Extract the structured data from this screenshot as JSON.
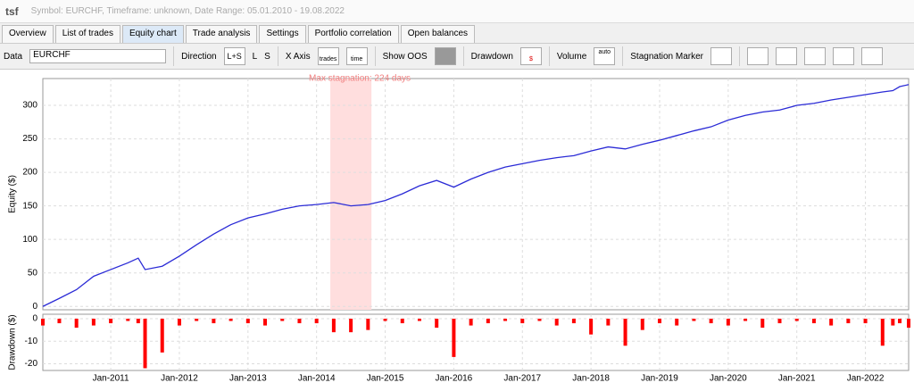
{
  "header": {
    "app": "tsf",
    "info": "Symbol: EURCHF, Timeframe: unknown, Date Range: 05.01.2010 - 19.08.2022"
  },
  "tabs": [
    "Overview",
    "List of trades",
    "Equity chart",
    "Trade analysis",
    "Settings",
    "Portfolio correlation",
    "Open balances"
  ],
  "toolbar": {
    "data_label": "Data",
    "data_value": "EURCHF",
    "direction": "Direction",
    "dir_options": [
      "L+S",
      "L",
      "S"
    ],
    "x_axis": "X Axis",
    "x_icons": [
      "trades",
      "time"
    ],
    "show_oos": "Show OOS",
    "drawdown": "Drawdown",
    "volume": "Volume",
    "volume_icon": "auto",
    "stagnation": "Stagnation Marker"
  },
  "chart_data": [
    {
      "type": "line",
      "ylabel": "Equity ($)",
      "color": "#2b2bd6",
      "annotation": "Max stagnation: 224 days",
      "stagnation": {
        "start": 2014.2,
        "end": 2014.8
      },
      "x": [
        2010.01,
        2010.25,
        2010.5,
        2010.75,
        2011.0,
        2011.25,
        2011.4,
        2011.5,
        2011.75,
        2012.0,
        2012.25,
        2012.5,
        2012.75,
        2013.0,
        2013.25,
        2013.5,
        2013.75,
        2014.0,
        2014.25,
        2014.5,
        2014.75,
        2015.0,
        2015.25,
        2015.5,
        2015.75,
        2016.0,
        2016.25,
        2016.5,
        2016.75,
        2017.0,
        2017.25,
        2017.5,
        2017.75,
        2018.0,
        2018.25,
        2018.5,
        2018.75,
        2019.0,
        2019.25,
        2019.5,
        2019.75,
        2020.0,
        2020.25,
        2020.5,
        2020.75,
        2021.0,
        2021.25,
        2021.5,
        2021.75,
        2022.0,
        2022.25,
        2022.4,
        2022.5,
        2022.63
      ],
      "values": [
        0,
        12,
        25,
        45,
        55,
        65,
        72,
        55,
        60,
        75,
        92,
        108,
        122,
        132,
        138,
        145,
        150,
        152,
        155,
        150,
        152,
        158,
        168,
        180,
        188,
        178,
        190,
        200,
        208,
        213,
        218,
        222,
        225,
        232,
        238,
        235,
        242,
        248,
        255,
        262,
        268,
        278,
        285,
        290,
        293,
        300,
        303,
        308,
        312,
        316,
        320,
        322,
        328,
        331
      ],
      "xlim": [
        2010.01,
        2022.63
      ],
      "ylim": [
        -5,
        340
      ],
      "yticks": [
        0,
        50,
        100,
        150,
        200,
        250,
        300
      ],
      "grid": true
    },
    {
      "type": "bar",
      "ylabel": "Drawdown ($)",
      "color": "#ff0000",
      "x": [
        2010.01,
        2010.25,
        2010.5,
        2010.75,
        2011.0,
        2011.25,
        2011.4,
        2011.5,
        2011.75,
        2012.0,
        2012.25,
        2012.5,
        2012.75,
        2013.0,
        2013.25,
        2013.5,
        2013.75,
        2014.0,
        2014.25,
        2014.5,
        2014.75,
        2015.0,
        2015.25,
        2015.5,
        2015.75,
        2016.0,
        2016.25,
        2016.5,
        2016.75,
        2017.0,
        2017.25,
        2017.5,
        2017.75,
        2018.0,
        2018.25,
        2018.5,
        2018.75,
        2019.0,
        2019.25,
        2019.5,
        2019.75,
        2020.0,
        2020.25,
        2020.5,
        2020.75,
        2021.0,
        2021.25,
        2021.5,
        2021.75,
        2022.0,
        2022.25,
        2022.4,
        2022.5,
        2022.63
      ],
      "values": [
        -3,
        -2,
        -4,
        -3,
        -2,
        -1,
        -2,
        -22,
        -15,
        -3,
        -1,
        -2,
        -1,
        -2,
        -3,
        -1,
        -2,
        -2,
        -6,
        -6,
        -5,
        -1,
        -2,
        -1,
        -4,
        -17,
        -3,
        -2,
        -1,
        -2,
        -1,
        -3,
        -2,
        -7,
        -3,
        -12,
        -5,
        -2,
        -3,
        -1,
        -2,
        -3,
        -1,
        -4,
        -2,
        -1,
        -2,
        -3,
        -2,
        -2,
        -12,
        -3,
        -2,
        -4
      ],
      "xlim": [
        2010.01,
        2022.63
      ],
      "ylim": [
        -23,
        2
      ],
      "yticks": [
        0,
        -10,
        -20
      ],
      "grid": true,
      "xticks": [
        {
          "value": 2011,
          "label": "Jan-2011"
        },
        {
          "value": 2012,
          "label": "Jan-2012"
        },
        {
          "value": 2013,
          "label": "Jan-2013"
        },
        {
          "value": 2014,
          "label": "Jan-2014"
        },
        {
          "value": 2015,
          "label": "Jan-2015"
        },
        {
          "value": 2016,
          "label": "Jan-2016"
        },
        {
          "value": 2017,
          "label": "Jan-2017"
        },
        {
          "value": 2018,
          "label": "Jan-2018"
        },
        {
          "value": 2019,
          "label": "Jan-2019"
        },
        {
          "value": 2020,
          "label": "Jan-2020"
        },
        {
          "value": 2021,
          "label": "Jan-2021"
        },
        {
          "value": 2022,
          "label": "Jan-2022"
        }
      ]
    }
  ]
}
